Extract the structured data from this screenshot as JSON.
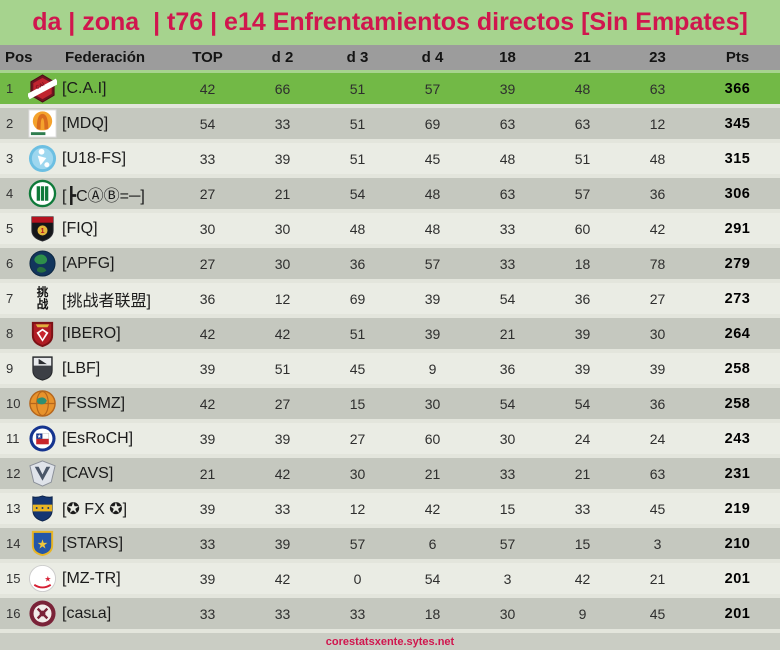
{
  "title": "da | zona  | t76 | e14 Enfrentamientos directos [Sin Empates]",
  "columns": [
    {
      "key": "pos",
      "label": "Pos"
    },
    {
      "key": "federacion",
      "label": "Federación"
    },
    {
      "key": "top",
      "label": "TOP"
    },
    {
      "key": "d-2",
      "label": "d 2"
    },
    {
      "key": "d-3",
      "label": "d 3"
    },
    {
      "key": "d-4",
      "label": "d 4"
    },
    {
      "key": "18",
      "label": "18"
    },
    {
      "key": "21",
      "label": "21"
    },
    {
      "key": "23",
      "label": "23"
    },
    {
      "key": "pts",
      "label": "Pts"
    }
  ],
  "rows": [
    {
      "pos": 1,
      "icon": "cai-crest",
      "name": "[C.A.I]",
      "values": [
        42,
        66,
        51,
        57,
        39,
        48,
        63
      ],
      "pts": 366,
      "highlight": true
    },
    {
      "pos": 2,
      "icon": "mdq-crest",
      "name": "[MDQ]",
      "values": [
        54,
        33,
        51,
        69,
        63,
        63,
        12
      ],
      "pts": 345
    },
    {
      "pos": 3,
      "icon": "u18-fs-crest",
      "name": "[U18-FS]",
      "values": [
        33,
        39,
        51,
        45,
        48,
        51,
        48
      ],
      "pts": 315
    },
    {
      "pos": 4,
      "icon": "green-stripes-crest",
      "name": "[┣CⒶⒷ=─]",
      "values": [
        27,
        21,
        54,
        48,
        63,
        57,
        36
      ],
      "pts": 306
    },
    {
      "pos": 5,
      "icon": "fiq-crest",
      "name": "[FIQ]",
      "values": [
        30,
        30,
        48,
        48,
        33,
        60,
        42
      ],
      "pts": 291
    },
    {
      "pos": 6,
      "icon": "apfg-globe-crest",
      "name": "[APFG]",
      "values": [
        27,
        30,
        36,
        57,
        33,
        18,
        78
      ],
      "pts": 279
    },
    {
      "pos": 7,
      "icon": "chinese-seal-crest",
      "name": "[挑战者联盟]",
      "values": [
        36,
        12,
        69,
        39,
        54,
        36,
        27
      ],
      "pts": 273
    },
    {
      "pos": 8,
      "icon": "ibero-crest",
      "name": "[IBERO]",
      "values": [
        42,
        42,
        51,
        39,
        21,
        39,
        30
      ],
      "pts": 264
    },
    {
      "pos": 9,
      "icon": "lbf-crest",
      "name": "[LBF]",
      "values": [
        39,
        51,
        45,
        9,
        36,
        39,
        39
      ],
      "pts": 258
    },
    {
      "pos": 10,
      "icon": "fssmz-crest",
      "name": "[FSSMZ]",
      "values": [
        42,
        27,
        15,
        30,
        54,
        54,
        36
      ],
      "pts": 258
    },
    {
      "pos": 11,
      "icon": "esroch-crest",
      "name": "[EsRoCH]",
      "values": [
        39,
        39,
        27,
        60,
        30,
        24,
        24
      ],
      "pts": 243
    },
    {
      "pos": 12,
      "icon": "cavs-crest",
      "name": "[CAVS]",
      "values": [
        21,
        42,
        30,
        21,
        33,
        21,
        63
      ],
      "pts": 231
    },
    {
      "pos": 13,
      "icon": "fx-stars-crest",
      "name": "[✪ FX ✪]",
      "values": [
        39,
        33,
        12,
        42,
        15,
        33,
        45
      ],
      "pts": 219
    },
    {
      "pos": 14,
      "icon": "stars-crest",
      "name": "[STARS]",
      "values": [
        33,
        39,
        57,
        6,
        57,
        15,
        3
      ],
      "pts": 210
    },
    {
      "pos": 15,
      "icon": "mz-tr-crest",
      "name": "[MZ-TR]",
      "values": [
        39,
        42,
        0,
        54,
        3,
        42,
        21
      ],
      "pts": 201
    },
    {
      "pos": 16,
      "icon": "casla-crest",
      "name": "[casʟa]",
      "values": [
        33,
        33,
        33,
        18,
        30,
        9,
        45
      ],
      "pts": 201
    }
  ],
  "footer": {
    "link": "corestatsxente.sytes.net"
  },
  "colors": {
    "page_bg": "#a6d38e",
    "accent_red": "#d0164e",
    "header_bg": "#9c9c9c",
    "header_text": "#141414",
    "row_highlight": "#72b946",
    "row_even": "#c5c8bf",
    "row_odd": "#eaece4",
    "row_separator": "#e3e5dc",
    "footer_bg": "#cacdc4",
    "text_dark": "#2e2e2e",
    "pts_text": "#000000"
  }
}
